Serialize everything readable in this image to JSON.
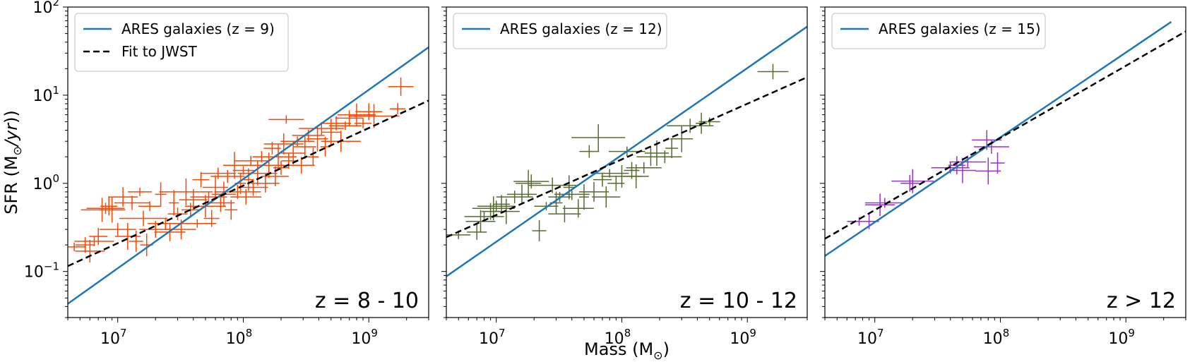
{
  "colors": {
    "model": "#1f77b4",
    "fit": "#000000",
    "series": [
      "#ff4500",
      "#556b2f",
      "#9932cc"
    ]
  },
  "axes": {
    "xlabel": "Mass (M",
    "ylabel": "SFR (M",
    "xscale": "log",
    "yscale": "log",
    "xlim": [
      4000000,
      3000000000
    ],
    "ylim": [
      0.03,
      100
    ],
    "x_ticks": [
      {
        "value": 10000000,
        "base": "10",
        "exp": "7"
      },
      {
        "value": 100000000,
        "base": "10",
        "exp": "8"
      },
      {
        "value": 1000000000,
        "base": "10",
        "exp": "9"
      }
    ],
    "y_ticks": [
      {
        "value": 0.1,
        "base": "10",
        "exp": "−1"
      },
      {
        "value": 1,
        "base": "10",
        "exp": "0"
      },
      {
        "value": 10,
        "base": "10",
        "exp": "1"
      },
      {
        "value": 100,
        "base": "10",
        "exp": "2"
      }
    ]
  },
  "chart_data": [
    {
      "type": "scatter",
      "region_label": "z = 8 - 10",
      "legend_placement": "top-left",
      "legend": [
        {
          "label": "ARES galaxies (z = 9)",
          "style": "solid"
        },
        {
          "label": "Fit to JWST",
          "style": "dashed"
        }
      ],
      "model_line": [
        [
          4000000,
          0.043
        ],
        [
          3000000000,
          35
        ]
      ],
      "fit_line": [
        [
          4000000,
          0.115
        ],
        [
          3000000000,
          8.7
        ]
      ],
      "points": [
        [
          4500000.0,
          0.19
        ],
        [
          5500000.0,
          0.2
        ],
        [
          6000000.0,
          0.17
        ],
        [
          6500000.0,
          0.22
        ],
        [
          7000000.0,
          0.25
        ],
        [
          7500000.0,
          0.5
        ],
        [
          8000000.0,
          0.52
        ],
        [
          8500000.0,
          0.55
        ],
        [
          9000000.0,
          0.5
        ],
        [
          10000000.0,
          0.3
        ],
        [
          11000000.0,
          0.7
        ],
        [
          12000000.0,
          0.25
        ],
        [
          13000000.0,
          0.6
        ],
        [
          14000000.0,
          0.22
        ],
        [
          15000000.0,
          0.8
        ],
        [
          16000000.0,
          0.4
        ],
        [
          17000000.0,
          0.2
        ],
        [
          18000000.0,
          0.55
        ],
        [
          20000000.0,
          0.3
        ],
        [
          22000000.0,
          0.75
        ],
        [
          24000000.0,
          0.35
        ],
        [
          26000000.0,
          0.28
        ],
        [
          28000000.0,
          0.6
        ],
        [
          30000000.0,
          0.45
        ],
        [
          32000000.0,
          0.3
        ],
        [
          35000000.0,
          0.8
        ],
        [
          38000000.0,
          0.5
        ],
        [
          40000000.0,
          0.65
        ],
        [
          43000000.0,
          0.35
        ],
        [
          46000000.0,
          1.1
        ],
        [
          50000000.0,
          0.55
        ],
        [
          53000000.0,
          0.7
        ],
        [
          56000000.0,
          0.4
        ],
        [
          60000000.0,
          0.9
        ],
        [
          63000000.0,
          1.3
        ],
        [
          66000000.0,
          0.6
        ],
        [
          70000000.0,
          0.75
        ],
        [
          75000000.0,
          1.2
        ],
        [
          80000000.0,
          0.5
        ],
        [
          85000000.0,
          1.6
        ],
        [
          90000000.0,
          0.8
        ],
        [
          95000000.0,
          1.0
        ],
        [
          100000000.0,
          1.4
        ],
        [
          105000000.0,
          0.7
        ],
        [
          110000000.0,
          1.1
        ],
        [
          115000000.0,
          1.8
        ],
        [
          120000000.0,
          0.9
        ],
        [
          130000000.0,
          1.3
        ],
        [
          140000000.0,
          2.0
        ],
        [
          150000000.0,
          1.0
        ],
        [
          160000000.0,
          1.6
        ],
        [
          170000000.0,
          2.5
        ],
        [
          180000000.0,
          1.2
        ],
        [
          190000000.0,
          2.0
        ],
        [
          200000000.0,
          1.5
        ],
        [
          210000000.0,
          2.8
        ],
        [
          220000000.0,
          5.3
        ],
        [
          230000000.0,
          1.8
        ],
        [
          250000000.0,
          2.2
        ],
        [
          270000000.0,
          3.0
        ],
        [
          290000000.0,
          1.6
        ],
        [
          310000000.0,
          2.6
        ],
        [
          330000000.0,
          3.5
        ],
        [
          360000000.0,
          2.0
        ],
        [
          390000000.0,
          3.2
        ],
        [
          420000000.0,
          4.2
        ],
        [
          450000000.0,
          2.6
        ],
        [
          500000000.0,
          3.8
        ],
        [
          550000000.0,
          4.8
        ],
        [
          600000000.0,
          3.0
        ],
        [
          650000000.0,
          4.5
        ],
        [
          700000000.0,
          5.5
        ],
        [
          800000000.0,
          6.0
        ],
        [
          900000000.0,
          4.8
        ],
        [
          1000000000.0,
          6.5
        ],
        [
          1100000000.0,
          5.8
        ],
        [
          1700000000.0,
          7.0
        ],
        [
          1800000000.0,
          12.5
        ]
      ]
    },
    {
      "type": "scatter",
      "region_label": "z = 10 - 12",
      "legend_placement": "top-left",
      "legend": [
        {
          "label": "ARES galaxies (z = 12)",
          "style": "solid"
        }
      ],
      "model_line": [
        [
          4000000,
          0.088
        ],
        [
          3000000000,
          60
        ]
      ],
      "fit_line": [
        [
          4000000,
          0.245
        ],
        [
          3000000000,
          16
        ]
      ],
      "points": [
        [
          5000000.0,
          0.26
        ],
        [
          7000000.0,
          0.28
        ],
        [
          7500000.0,
          0.37
        ],
        [
          8000000.0,
          0.42
        ],
        [
          9000000.0,
          0.48
        ],
        [
          9500000.0,
          0.52
        ],
        [
          10000000.0,
          0.55
        ],
        [
          11000000.0,
          0.58
        ],
        [
          12000000.0,
          0.48
        ],
        [
          14000000.0,
          0.7
        ],
        [
          16000000.0,
          0.75
        ],
        [
          18000000.0,
          1.0
        ],
        [
          19000000.0,
          1.05
        ],
        [
          22000000.0,
          0.29
        ],
        [
          25000000.0,
          0.55
        ],
        [
          28000000.0,
          0.95
        ],
        [
          30000000.0,
          0.6
        ],
        [
          32000000.0,
          0.7
        ],
        [
          35000000.0,
          0.45
        ],
        [
          38000000.0,
          0.9
        ],
        [
          40000000.0,
          0.75
        ],
        [
          45000000.0,
          0.52
        ],
        [
          50000000.0,
          0.7
        ],
        [
          55000000.0,
          2.3
        ],
        [
          60000000.0,
          0.8
        ],
        [
          65000000.0,
          3.3
        ],
        [
          70000000.0,
          1.1
        ],
        [
          75000000.0,
          0.7
        ],
        [
          80000000.0,
          1.3
        ],
        [
          90000000.0,
          1.0
        ],
        [
          100000000.0,
          1.2
        ],
        [
          110000000.0,
          2.3
        ],
        [
          120000000.0,
          1.4
        ],
        [
          130000000.0,
          1.2
        ],
        [
          150000000.0,
          1.5
        ],
        [
          170000000.0,
          2.0
        ],
        [
          190000000.0,
          2.2
        ],
        [
          220000000.0,
          2.0
        ],
        [
          250000000.0,
          2.5
        ],
        [
          300000000.0,
          3.2
        ],
        [
          350000000.0,
          4.5
        ],
        [
          430000000.0,
          4.8
        ],
        [
          500000000.0,
          5.0
        ],
        [
          1600000000.0,
          18.5
        ]
      ]
    },
    {
      "type": "scatter",
      "region_label": "z > 12",
      "legend_placement": "top-left",
      "legend": [
        {
          "label": "ARES galaxies (z = 15)",
          "style": "solid"
        }
      ],
      "model_line": [
        [
          4000000,
          0.15
        ],
        [
          2300000000,
          68
        ]
      ],
      "fit_line": [
        [
          4000000,
          0.235
        ],
        [
          3000000000,
          53
        ]
      ],
      "points": [
        [
          7500000.0,
          0.37
        ],
        [
          9000000.0,
          0.37
        ],
        [
          11000000.0,
          0.57
        ],
        [
          12000000.0,
          0.6
        ],
        [
          19000000.0,
          1.0
        ],
        [
          20000000.0,
          1.06
        ],
        [
          40000000.0,
          1.5
        ],
        [
          45000000.0,
          1.6
        ],
        [
          50000000.0,
          1.4
        ],
        [
          55000000.0,
          1.75
        ],
        [
          78000000.0,
          3.1
        ],
        [
          80000000.0,
          1.38
        ],
        [
          85000000.0,
          2.6
        ],
        [
          95000000.0,
          1.7
        ]
      ]
    }
  ]
}
